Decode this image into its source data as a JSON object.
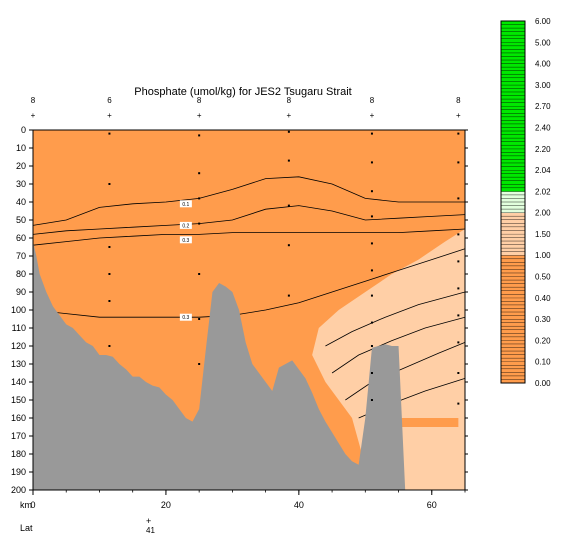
{
  "chart_data": {
    "type": "heatmap",
    "title": "Phosphate (umol/kg) for JES2 Tsugaru Strait",
    "xlabel": "km",
    "lat_label": "Lat",
    "lat_tick_label": "41",
    "xlim": [
      0,
      65
    ],
    "ylim": [
      200,
      0
    ],
    "x_ticks": [
      0,
      20,
      40,
      60
    ],
    "x_tick_labels": [
      "0",
      "20",
      "40",
      "60"
    ],
    "y_ticks": [
      0,
      10,
      20,
      30,
      40,
      50,
      60,
      70,
      80,
      90,
      100,
      110,
      120,
      130,
      140,
      150,
      160,
      170,
      180,
      190,
      200
    ],
    "y_tick_labels": [
      "0",
      "10",
      "20",
      "30",
      "40",
      "50",
      "60",
      "70",
      "80",
      "90",
      "100",
      "110",
      "120",
      "130",
      "140",
      "150",
      "160",
      "170",
      "180",
      "190",
      "200"
    ],
    "station_km": [
      0,
      11.5,
      25,
      38.5,
      51,
      64
    ],
    "station_labels": [
      "8",
      "6",
      "8",
      "8",
      "8",
      "8"
    ],
    "sample_points": [
      {
        "x": 11.5,
        "y": [
          2,
          30,
          65,
          80,
          95,
          120
        ]
      },
      {
        "x": 25,
        "y": [
          3,
          24,
          38,
          52,
          80,
          105,
          130
        ]
      },
      {
        "x": 38.5,
        "y": [
          1,
          17,
          42,
          64,
          92
        ]
      },
      {
        "x": 51,
        "y": [
          2,
          18,
          34,
          48,
          63,
          78,
          92,
          107,
          120,
          135,
          150
        ]
      },
      {
        "x": 64,
        "y": [
          2,
          18,
          38,
          58,
          73,
          88,
          103,
          118,
          135,
          152
        ]
      }
    ],
    "colorbar": {
      "levels": [
        0.0,
        0.1,
        0.2,
        0.3,
        0.4,
        0.5,
        1.0,
        1.5,
        2.0,
        2.02,
        2.04,
        2.2,
        2.4,
        2.7,
        3.0,
        4.0,
        5.0,
        6.0
      ],
      "tick_labels": [
        "0.00",
        "0.10",
        "0.20",
        "0.30",
        "0.40",
        "0.50",
        "1.00",
        "1.50",
        "2.00",
        "2.02",
        "2.04",
        "2.20",
        "2.40",
        "2.70",
        "3.00",
        "4.00",
        "5.00",
        "6.00"
      ],
      "color_low": "#ff9c4c",
      "color_mid": "#ffcfa6",
      "color_light_green": "#e2ffdd",
      "color_green": "#00e800"
    },
    "contour_labels": [
      "0.1",
      "0.2",
      "0.3",
      "0.3"
    ],
    "bathymetry_km": [
      0,
      0.5,
      1,
      2,
      3,
      4,
      5,
      6,
      7,
      8,
      9,
      10,
      11,
      12,
      13,
      14,
      15,
      16,
      17,
      18,
      19,
      20,
      21,
      22,
      23,
      24,
      25,
      26,
      27,
      28,
      29,
      30,
      31,
      32,
      33,
      34,
      35,
      36,
      37,
      38,
      39,
      40,
      41,
      42,
      43,
      44,
      45,
      46,
      47,
      48,
      49,
      50,
      51,
      52,
      53,
      54,
      55,
      56,
      57,
      58,
      59,
      60,
      61,
      62,
      63,
      64,
      65
    ],
    "bathymetry_depth": [
      62,
      70,
      80,
      90,
      98,
      103,
      108,
      110,
      114,
      118,
      120,
      125,
      125,
      126,
      130,
      133,
      137,
      137,
      140,
      142,
      143,
      147,
      150,
      155,
      160,
      162,
      155,
      122,
      90,
      85,
      87,
      90,
      100,
      118,
      130,
      135,
      140,
      145,
      132,
      130,
      128,
      133,
      138,
      146,
      155,
      162,
      168,
      174,
      180,
      184,
      186,
      160,
      121,
      120,
      119,
      120,
      120,
      200,
      200,
      200,
      200,
      200,
      200,
      200,
      200,
      200,
      200
    ],
    "series": [
      {
        "value": 0.1,
        "x": [
          0,
          5,
          10,
          15,
          20,
          25,
          30,
          35,
          40,
          45,
          50,
          55,
          60,
          65
        ],
        "y": [
          53,
          50,
          43,
          41,
          40,
          38,
          33,
          27,
          26,
          30,
          38,
          40,
          40,
          40
        ]
      },
      {
        "value": 0.2,
        "x": [
          0,
          5,
          10,
          15,
          20,
          25,
          30,
          35,
          40,
          45,
          50,
          55,
          60,
          65
        ],
        "y": [
          58,
          56,
          55,
          54,
          53,
          52,
          50,
          44,
          42,
          45,
          50,
          49,
          48,
          47
        ]
      },
      {
        "value": 0.3,
        "x": [
          0,
          5,
          10,
          15,
          20,
          25,
          30,
          35,
          40,
          45,
          50,
          55,
          60,
          65
        ],
        "y": [
          64,
          62,
          60,
          59,
          58,
          58,
          57,
          57,
          57,
          57,
          57,
          57,
          56,
          55
        ]
      },
      {
        "value": 0.3,
        "x": [
          0,
          5,
          10,
          15,
          20,
          25,
          30,
          35,
          40,
          45,
          50,
          55,
          60,
          65
        ],
        "y": [
          100,
          102,
          104,
          104,
          104,
          104,
          103,
          100,
          96,
          90,
          84,
          78,
          72,
          66
        ]
      }
    ]
  }
}
